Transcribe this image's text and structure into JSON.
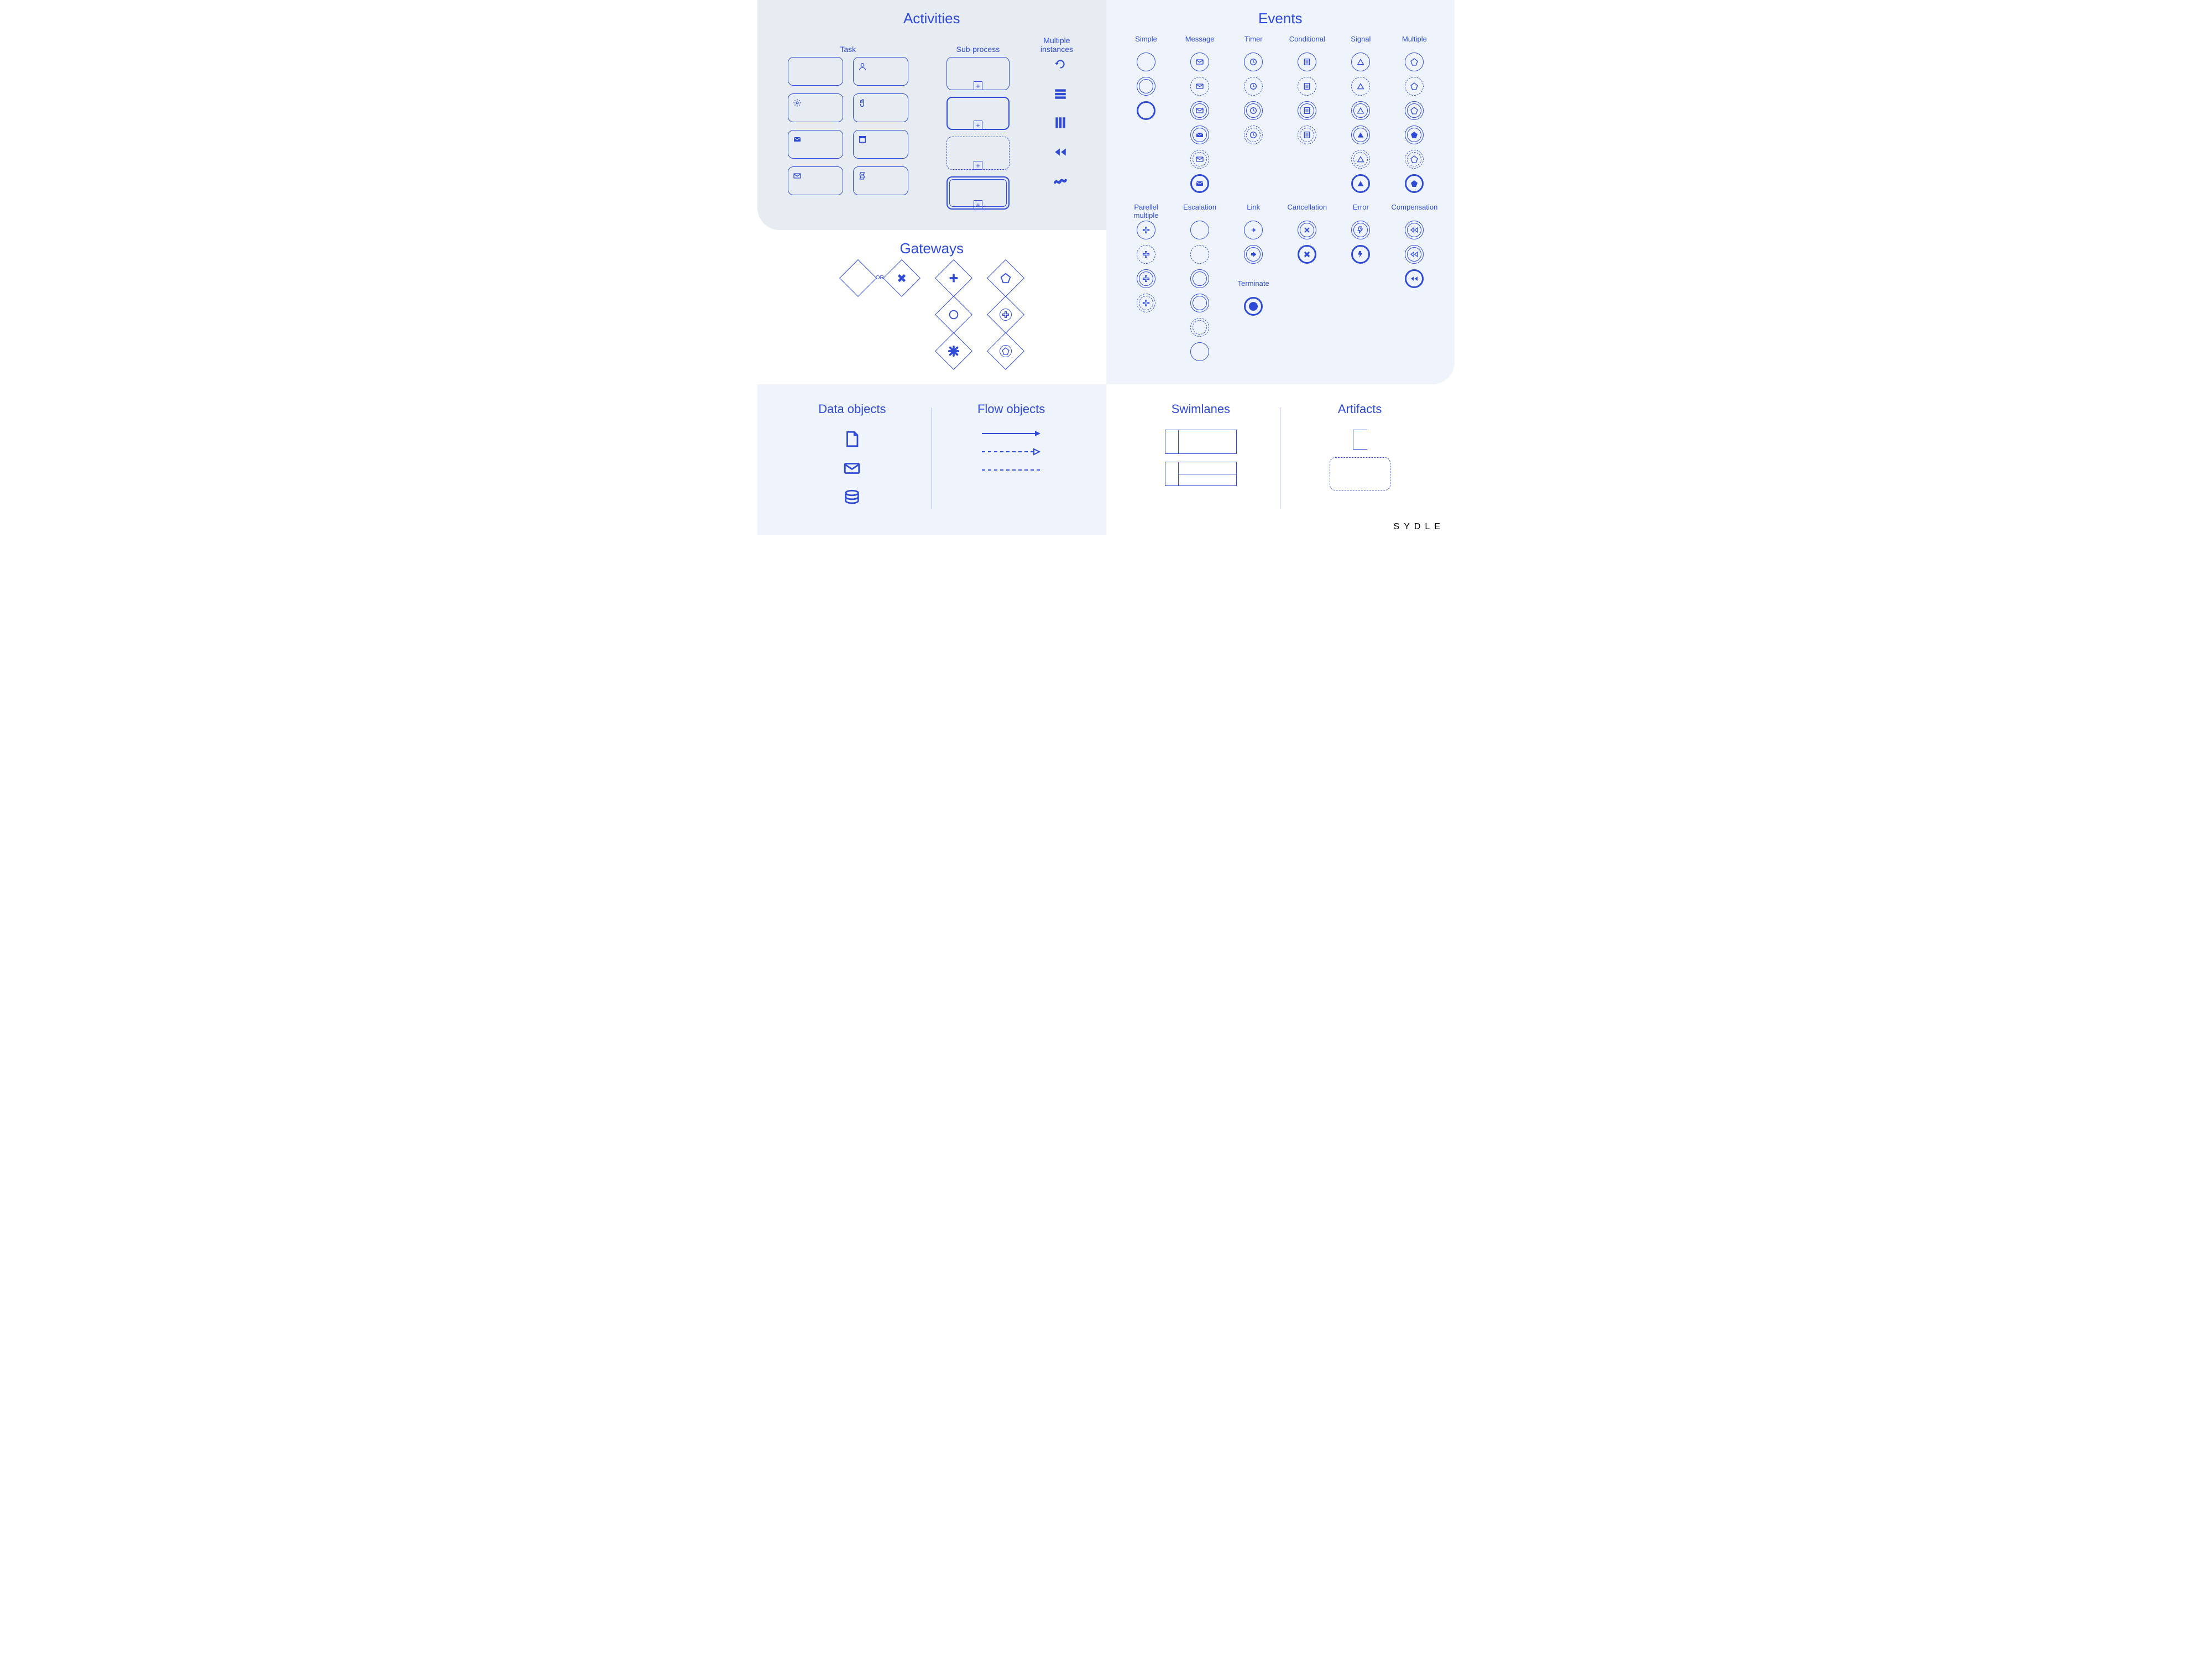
{
  "colors": {
    "primary": "#2f4bd6",
    "primaryFill": "#2f4bd6",
    "panelA": "#e7ecf3",
    "panelB": "#eef3fc",
    "white": "#ffffff"
  },
  "brand": "SYDLE",
  "sections": {
    "activities": {
      "title": "Activities",
      "cols": {
        "task": "Task",
        "subprocess": "Sub-process",
        "multiple": "Multiple\ninstances"
      },
      "taskIcons": [
        "",
        "user",
        "gear",
        "hand",
        "mail-solid",
        "form",
        "mail-outline",
        "script"
      ],
      "subBoxes": [
        {
          "style": "thin"
        },
        {
          "style": "bold"
        },
        {
          "style": "dashed"
        },
        {
          "style": "dbl"
        }
      ],
      "miIcons": [
        "loop",
        "bars-h",
        "bars-v",
        "rewind",
        "tilde"
      ]
    },
    "gateways": {
      "title": "Gateways",
      "orLabel": "OR",
      "items": [
        [
          "empty-or-x"
        ],
        [
          "plus",
          "circle",
          "asterisk"
        ],
        [
          "pentagon",
          "plus-ring",
          "pentagon-ring"
        ]
      ]
    },
    "events": {
      "title": "Events",
      "row1Labels": [
        "Simple",
        "Message",
        "Timer",
        "Conditional",
        "Signal",
        "Multiple"
      ],
      "row1": {
        "Simple": [
          [
            "single",
            ""
          ],
          [
            "dbl",
            ""
          ],
          [
            "bold",
            ""
          ]
        ],
        "Message": [
          [
            "single",
            "mail"
          ],
          [
            "dashed",
            "mail"
          ],
          [
            "dbl",
            "mail"
          ],
          [
            "dbl",
            "mail-solid"
          ],
          [
            "dbl-dashed",
            "mail"
          ],
          [
            "bold",
            "mail-solid"
          ]
        ],
        "Timer": [
          [
            "single",
            "clock"
          ],
          [
            "dashed",
            "clock"
          ],
          [
            "dbl",
            "clock"
          ],
          [
            "dbl-dashed",
            "clock"
          ]
        ],
        "Conditional": [
          [
            "single",
            "list"
          ],
          [
            "dashed",
            "list"
          ],
          [
            "dbl",
            "list"
          ],
          [
            "dbl-dashed",
            "list"
          ]
        ],
        "Signal": [
          [
            "single",
            "tri"
          ],
          [
            "dashed",
            "tri"
          ],
          [
            "dbl",
            "tri"
          ],
          [
            "dbl",
            "tri-solid"
          ],
          [
            "dbl-dashed",
            "tri"
          ],
          [
            "bold",
            "tri-solid"
          ]
        ],
        "Multiple": [
          [
            "single",
            "pent"
          ],
          [
            "dashed",
            "pent"
          ],
          [
            "dbl",
            "pent"
          ],
          [
            "dbl",
            "pent-solid"
          ],
          [
            "dbl-dashed",
            "pent"
          ],
          [
            "bold",
            "pent-solid"
          ]
        ]
      },
      "row2Labels": [
        "Parellel\nmultiple",
        "Escalation",
        "Link",
        "Cancellation",
        "Error",
        "Compensation"
      ],
      "row2": {
        "Parellel\nmultiple": [
          [
            "single",
            "plus"
          ],
          [
            "dashed",
            "plus"
          ],
          [
            "dbl",
            "plus"
          ],
          [
            "dbl-dashed",
            "plus"
          ]
        ],
        "Escalation": [
          [
            "single",
            ""
          ],
          [
            "dashed",
            ""
          ],
          [
            "dbl",
            ""
          ],
          [
            "dbl",
            ""
          ],
          [
            "dbl-dashed",
            ""
          ],
          [
            "single",
            ""
          ]
        ],
        "Link": [
          [
            "single",
            "arrow"
          ],
          [
            "dbl",
            "arrow-solid"
          ]
        ],
        "Cancellation": [
          [
            "dbl",
            "x"
          ],
          [
            "bold",
            "x-solid"
          ]
        ],
        "Error": [
          [
            "dbl",
            "bolt"
          ],
          [
            "bold",
            "bolt-solid"
          ]
        ],
        "Compensation": [
          [
            "dbl",
            "rew"
          ],
          [
            "dbl",
            "rew"
          ],
          [
            "bold",
            "rew-solid"
          ]
        ]
      },
      "terminate": {
        "label": "Terminate"
      }
    },
    "dataObjects": {
      "title": "Data objects"
    },
    "flowObjects": {
      "title": "Flow objects"
    },
    "swimlanes": {
      "title": "Swimlanes"
    },
    "artifacts": {
      "title": "Artifacts"
    }
  }
}
